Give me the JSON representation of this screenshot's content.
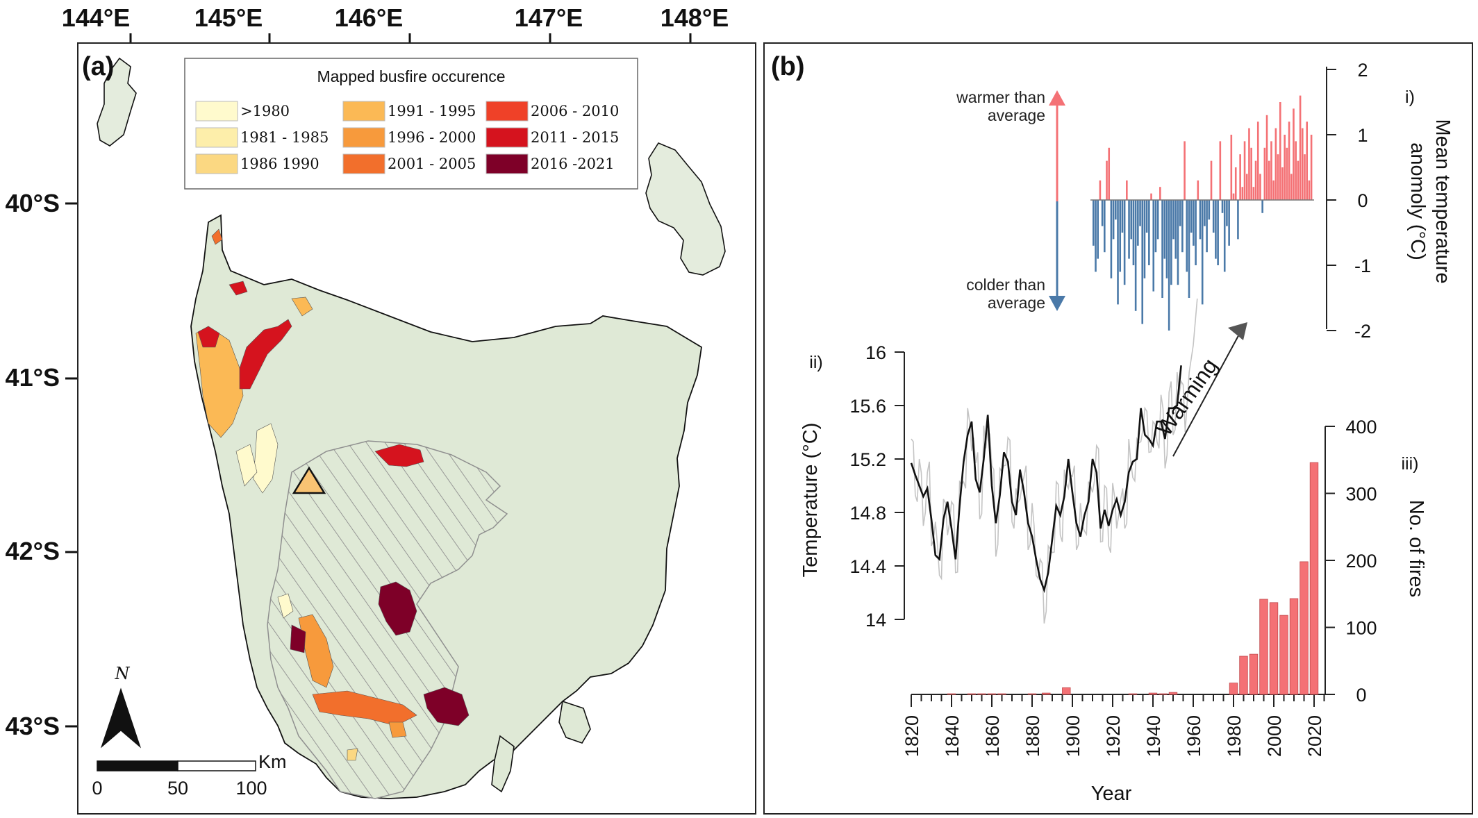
{
  "map": {
    "panel_label": "(a)",
    "lon_labels": [
      "144°E",
      "145°E",
      "146°E",
      "147°E",
      "148°E"
    ],
    "lat_labels": [
      "40°S",
      "41°S",
      "42°S",
      "43°S"
    ],
    "legend_title": "Mapped busfire occurence",
    "legend_items": [
      {
        "label": ">1980",
        "color": "#fffacd"
      },
      {
        "label": "1981 - 1985",
        "color": "#fdeeaa"
      },
      {
        "label": "1986  1990",
        "color": "#fbd882"
      },
      {
        "label": "1991 - 1995",
        "color": "#fbb955"
      },
      {
        "label": "1996 - 2000",
        "color": "#f79a3c"
      },
      {
        "label": "2001 - 2005",
        "color": "#f26f2c"
      },
      {
        "label": "2006 - 2010",
        "color": "#ef4128"
      },
      {
        "label": "2011 - 2015",
        "color": "#d5131e"
      },
      {
        "label": "2016 -2021",
        "color": "#7e0028"
      }
    ],
    "north_label": "N",
    "scale_ticks": [
      "0",
      "50",
      "100"
    ],
    "scale_unit": "Km",
    "land_color": "#dfe9d6",
    "hatch_color": "#8f8f8f",
    "marker_color": "#f9c373"
  },
  "chart_data": [
    {
      "id": "i",
      "type": "bar",
      "panel_label": "(b)",
      "sublabel": "i)",
      "ylabel": "Mean temperature anomoly (°C)",
      "ylim": [
        -2,
        2
      ],
      "yticks": [
        "2",
        "1",
        "0",
        "-1",
        "-2"
      ],
      "xlim": [
        1820,
        2022
      ],
      "warm_label": "warmer than average",
      "cold_label": "colder than average",
      "warm_color": "#f47175",
      "cold_color": "#4a79a8",
      "years_start": 1910,
      "values": [
        -0.7,
        -1.1,
        -0.9,
        0.3,
        -0.4,
        -0.8,
        0.6,
        0.8,
        -1.2,
        -0.6,
        -0.3,
        -1.6,
        -1.1,
        -0.5,
        -1.3,
        0.3,
        -0.9,
        -0.6,
        -1.0,
        -1.7,
        -0.7,
        -0.4,
        -1.9,
        -1.2,
        -0.5,
        -1.0,
        0.1,
        -1.4,
        -0.8,
        -0.6,
        0.2,
        -1.5,
        -0.9,
        -1.2,
        -2.0,
        -1.3,
        -0.6,
        -0.9,
        -1.3,
        -0.4,
        -0.8,
        0.9,
        -1.1,
        -1.5,
        -0.5,
        -0.7,
        -1.0,
        0.3,
        -0.6,
        -1.6,
        -0.4,
        -0.8,
        -0.3,
        0.6,
        -0.5,
        -0.9,
        -1.0,
        0.9,
        -0.2,
        -1.1,
        -0.4,
        -0.7,
        1.0,
        0.1,
        0.5,
        -0.6,
        0.7,
        0.2,
        0.9,
        0.4,
        1.1,
        0.8,
        0.2,
        0.6,
        1.2,
        0.4,
        -0.2,
        0.8,
        1.3,
        0.6,
        0.9,
        0.3,
        1.1,
        0.7,
        1.5,
        0.5,
        1.0,
        0.8,
        1.2,
        0.4,
        1.4,
        0.9,
        0.6,
        1.6,
        1.1,
        0.7,
        1.2,
        0.3,
        1.0
      ]
    },
    {
      "id": "ii",
      "type": "line",
      "sublabel": "ii)",
      "ylabel": "Temperature (°C)",
      "ylim": [
        14,
        16
      ],
      "yticks": [
        "16",
        "15.6",
        "15.2",
        "14.8",
        "14.4",
        "14"
      ],
      "trend_label": "Warming",
      "x_start": 1820,
      "x_step": 2,
      "smoothed": [
        15.17,
        15.08,
        15.0,
        14.92,
        14.98,
        14.75,
        14.48,
        14.45,
        14.75,
        14.88,
        14.68,
        14.45,
        14.85,
        15.18,
        15.38,
        15.48,
        15.05,
        14.95,
        15.2,
        15.53,
        15.0,
        14.72,
        14.93,
        15.25,
        15.18,
        14.88,
        14.78,
        15.12,
        14.95,
        14.72,
        14.62,
        14.45,
        14.3,
        14.22,
        14.35,
        14.6,
        14.85,
        14.78,
        14.92,
        15.2,
        14.95,
        14.72,
        14.62,
        14.78,
        14.88,
        15.2,
        15.1,
        14.68,
        14.82,
        14.7,
        14.82,
        14.9,
        14.78,
        14.88,
        15.1,
        15.18,
        15.2,
        15.58,
        15.38,
        15.35,
        15.3,
        15.48,
        15.48,
        15.35,
        15.58,
        15.58,
        15.6,
        15.9
      ],
      "raw_ext": [
        15.4,
        15.85,
        16.05,
        16.4
      ]
    },
    {
      "id": "iii",
      "type": "bar",
      "sublabel": "iii)",
      "xlabel": "Year",
      "ylabel": "No. of fires",
      "ylim": [
        0,
        400
      ],
      "yticks": [
        "400",
        "300",
        "200",
        "100",
        "0"
      ],
      "xticks": [
        "1820",
        "1840",
        "1860",
        "1880",
        "1900",
        "1920",
        "1940",
        "1960",
        "1980",
        "2000",
        "2020"
      ],
      "bar_color": "#f47175",
      "bars": [
        {
          "year": 1840,
          "value": 1
        },
        {
          "year": 1850,
          "value": 1
        },
        {
          "year": 1855,
          "value": 1
        },
        {
          "year": 1860,
          "value": 1
        },
        {
          "year": 1865,
          "value": 1
        },
        {
          "year": 1880,
          "value": 1
        },
        {
          "year": 1887,
          "value": 2
        },
        {
          "year": 1897,
          "value": 10
        },
        {
          "year": 1930,
          "value": 1
        },
        {
          "year": 1940,
          "value": 2
        },
        {
          "year": 1945,
          "value": 1
        },
        {
          "year": 1950,
          "value": 3
        },
        {
          "year": 1980,
          "value": 17
        },
        {
          "year": 1985,
          "value": 57
        },
        {
          "year": 1990,
          "value": 60
        },
        {
          "year": 1995,
          "value": 142
        },
        {
          "year": 2000,
          "value": 137
        },
        {
          "year": 2005,
          "value": 118
        },
        {
          "year": 2010,
          "value": 143
        },
        {
          "year": 2015,
          "value": 198
        },
        {
          "year": 2020,
          "value": 346
        }
      ]
    }
  ]
}
